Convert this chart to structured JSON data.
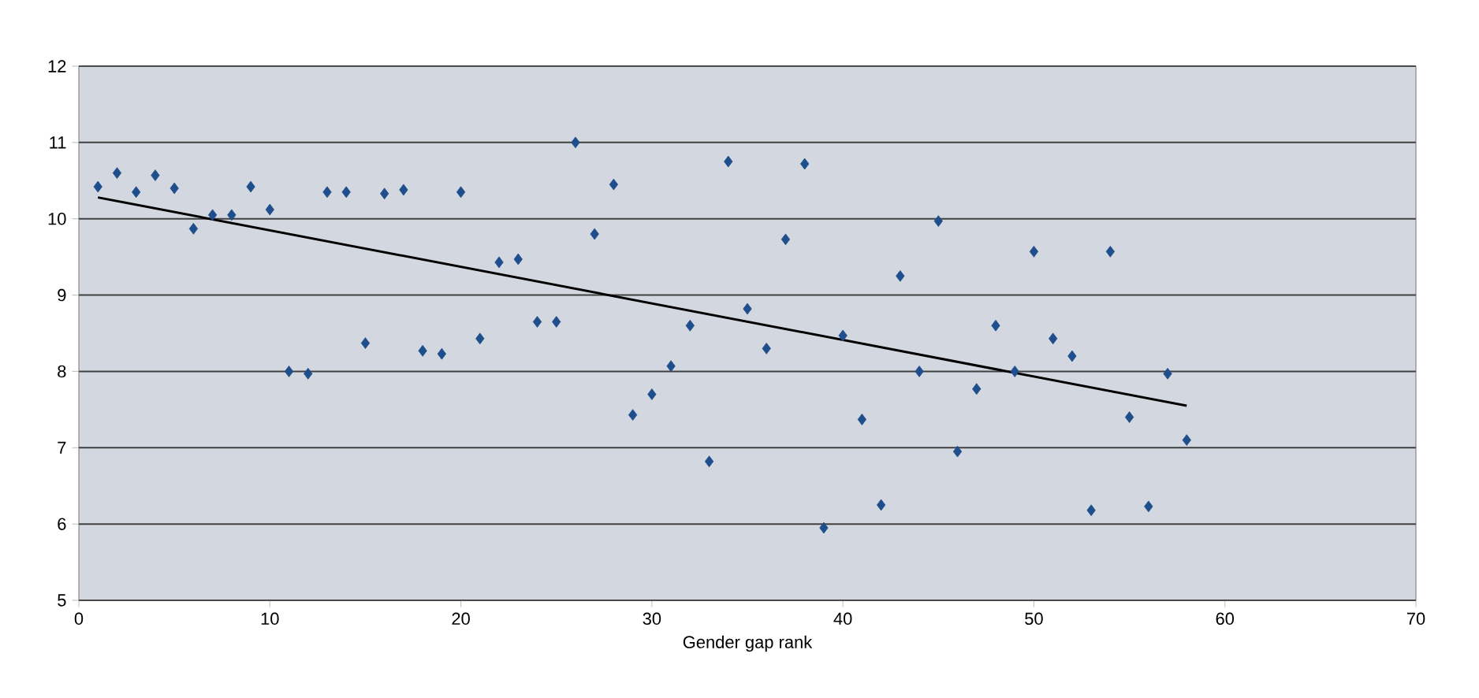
{
  "chart_data": {
    "type": "scatter",
    "xlabel": "Gender gap rank",
    "xlim": [
      0,
      70
    ],
    "xticks": [
      0,
      10,
      20,
      30,
      40,
      50,
      60,
      70
    ],
    "ylim": [
      5,
      12
    ],
    "yticks": [
      5,
      6,
      7,
      8,
      9,
      10,
      11,
      12
    ],
    "grid": "y",
    "marker": "diamond",
    "series": [
      {
        "color": "#1f4e8c",
        "x": [
          1,
          2,
          3,
          4,
          5,
          6,
          7,
          8,
          9,
          10,
          11,
          12,
          13,
          14,
          15,
          16,
          17,
          18,
          19,
          20,
          21,
          22,
          23,
          24,
          25,
          26,
          27,
          28,
          29,
          30,
          31,
          32,
          33,
          34,
          35,
          36,
          37,
          38,
          39,
          40,
          41,
          42,
          43,
          44,
          45,
          46,
          47,
          48,
          49,
          50,
          51,
          52,
          53,
          54,
          55,
          56,
          57,
          58
        ],
        "values": [
          10.42,
          10.6,
          10.35,
          10.57,
          10.4,
          9.87,
          10.05,
          10.05,
          10.42,
          10.12,
          8.0,
          7.97,
          10.35,
          10.35,
          8.37,
          10.33,
          10.38,
          8.27,
          8.23,
          10.35,
          8.43,
          9.43,
          9.47,
          8.65,
          8.65,
          11.0,
          9.8,
          10.45,
          7.43,
          7.7,
          8.07,
          8.6,
          6.82,
          10.75,
          8.82,
          8.3,
          9.73,
          10.72,
          5.95,
          8.47,
          7.37,
          6.25,
          9.25,
          8.0,
          9.97,
          6.95,
          7.77,
          8.6,
          8.0,
          9.57,
          8.43,
          8.2,
          6.18,
          9.57,
          7.4,
          6.23,
          7.97,
          7.1
        ]
      },
      {
        "type": "line",
        "color": "#000000",
        "marker": "none",
        "x": [
          1,
          58
        ],
        "values": [
          10.28,
          7.55
        ]
      }
    ]
  }
}
